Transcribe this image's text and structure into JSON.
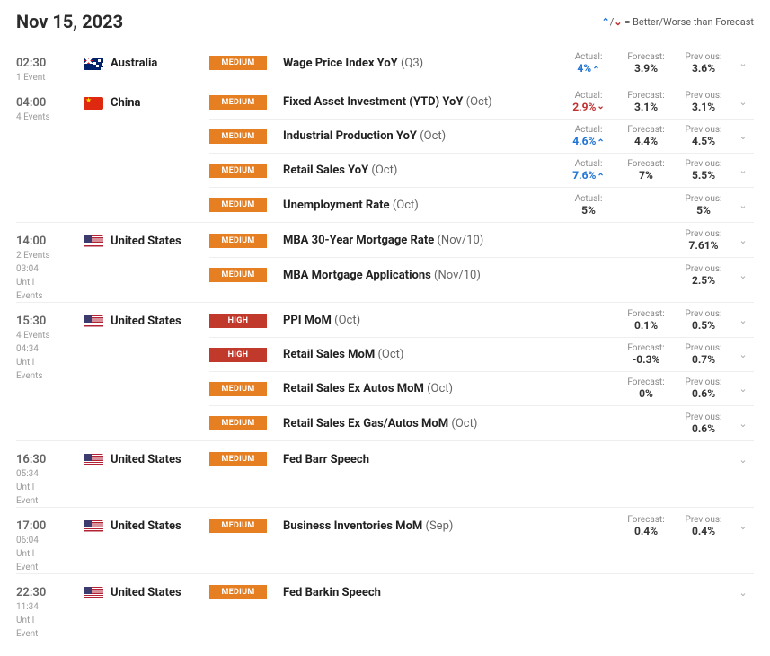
{
  "header": {
    "date": "Nov 15, 2023",
    "legend_text": "= Better/Worse than Forecast"
  },
  "labels": {
    "actual": "Actual:",
    "forecast": "Forecast:",
    "previous": "Previous:"
  },
  "colors": {
    "medium_badge": "#e67e22",
    "high_badge": "#c0392b",
    "better": "#1e73d4",
    "worse": "#c03030"
  },
  "groups": [
    {
      "time": "02:30",
      "sub": "1 Event",
      "country": "Australia",
      "flag": "au",
      "events": [
        {
          "imp": "medium",
          "name": "Wage Price Index YoY",
          "period": "(Q3)",
          "actual": "4%",
          "actual_dir": "better-up",
          "forecast": "3.9%",
          "previous": "3.6%"
        }
      ]
    },
    {
      "time": "04:00",
      "sub": "4 Events",
      "country": "China",
      "flag": "cn",
      "events": [
        {
          "imp": "medium",
          "name": "Fixed Asset Investment (YTD) YoY",
          "period": "(Oct)",
          "actual": "2.9%",
          "actual_dir": "worse-dn",
          "forecast": "3.1%",
          "previous": "3.1%"
        },
        {
          "imp": "medium",
          "name": "Industrial Production YoY",
          "period": "(Oct)",
          "actual": "4.6%",
          "actual_dir": "better-up",
          "forecast": "4.4%",
          "previous": "4.5%"
        },
        {
          "imp": "medium",
          "name": "Retail Sales YoY",
          "period": "(Oct)",
          "actual": "7.6%",
          "actual_dir": "better-up",
          "forecast": "7%",
          "previous": "5.5%"
        },
        {
          "imp": "medium",
          "name": "Unemployment Rate",
          "period": "(Oct)",
          "actual": "5%",
          "actual_dir": "",
          "forecast": "",
          "previous": "5%"
        }
      ]
    },
    {
      "time": "14:00",
      "sub": "2 Events\n03:04\nUntil\nEvents",
      "country": "United States",
      "flag": "us",
      "events": [
        {
          "imp": "medium",
          "name": "MBA 30-Year Mortgage Rate",
          "period": "(Nov/10)",
          "actual": "",
          "actual_dir": "",
          "forecast": "",
          "previous": "7.61%"
        },
        {
          "imp": "medium",
          "name": "MBA Mortgage Applications",
          "period": "(Nov/10)",
          "actual": "",
          "actual_dir": "",
          "forecast": "",
          "previous": "2.5%"
        }
      ]
    },
    {
      "time": "15:30",
      "sub": "4 Events\n04:34\nUntil\nEvents",
      "country": "United States",
      "flag": "us",
      "events": [
        {
          "imp": "high",
          "name": "PPI MoM",
          "period": "(Oct)",
          "actual": "",
          "actual_dir": "",
          "forecast": "0.1%",
          "previous": "0.5%"
        },
        {
          "imp": "high",
          "name": "Retail Sales MoM",
          "period": "(Oct)",
          "actual": "",
          "actual_dir": "",
          "forecast": "-0.3%",
          "previous": "0.7%"
        },
        {
          "imp": "medium",
          "name": "Retail Sales Ex Autos MoM",
          "period": "(Oct)",
          "actual": "",
          "actual_dir": "",
          "forecast": "0%",
          "previous": "0.6%"
        },
        {
          "imp": "medium",
          "name": "Retail Sales Ex Gas/Autos MoM",
          "period": "(Oct)",
          "actual": "",
          "actual_dir": "",
          "forecast": "",
          "previous": "0.6%"
        }
      ]
    },
    {
      "time": "16:30",
      "sub": "05:34\nUntil\nEvent",
      "country": "United States",
      "flag": "us",
      "events": [
        {
          "imp": "medium",
          "name": "Fed Barr Speech",
          "period": "",
          "actual": "",
          "actual_dir": "",
          "forecast": "",
          "previous": ""
        }
      ]
    },
    {
      "time": "17:00",
      "sub": "06:04\nUntil\nEvent",
      "country": "United States",
      "flag": "us",
      "events": [
        {
          "imp": "medium",
          "name": "Business Inventories MoM",
          "period": "(Sep)",
          "actual": "",
          "actual_dir": "",
          "forecast": "0.4%",
          "previous": "0.4%"
        }
      ]
    },
    {
      "time": "22:30",
      "sub": "11:34\nUntil\nEvent",
      "country": "United States",
      "flag": "us",
      "events": [
        {
          "imp": "medium",
          "name": "Fed Barkin Speech",
          "period": "",
          "actual": "",
          "actual_dir": "",
          "forecast": "",
          "previous": ""
        }
      ]
    }
  ]
}
